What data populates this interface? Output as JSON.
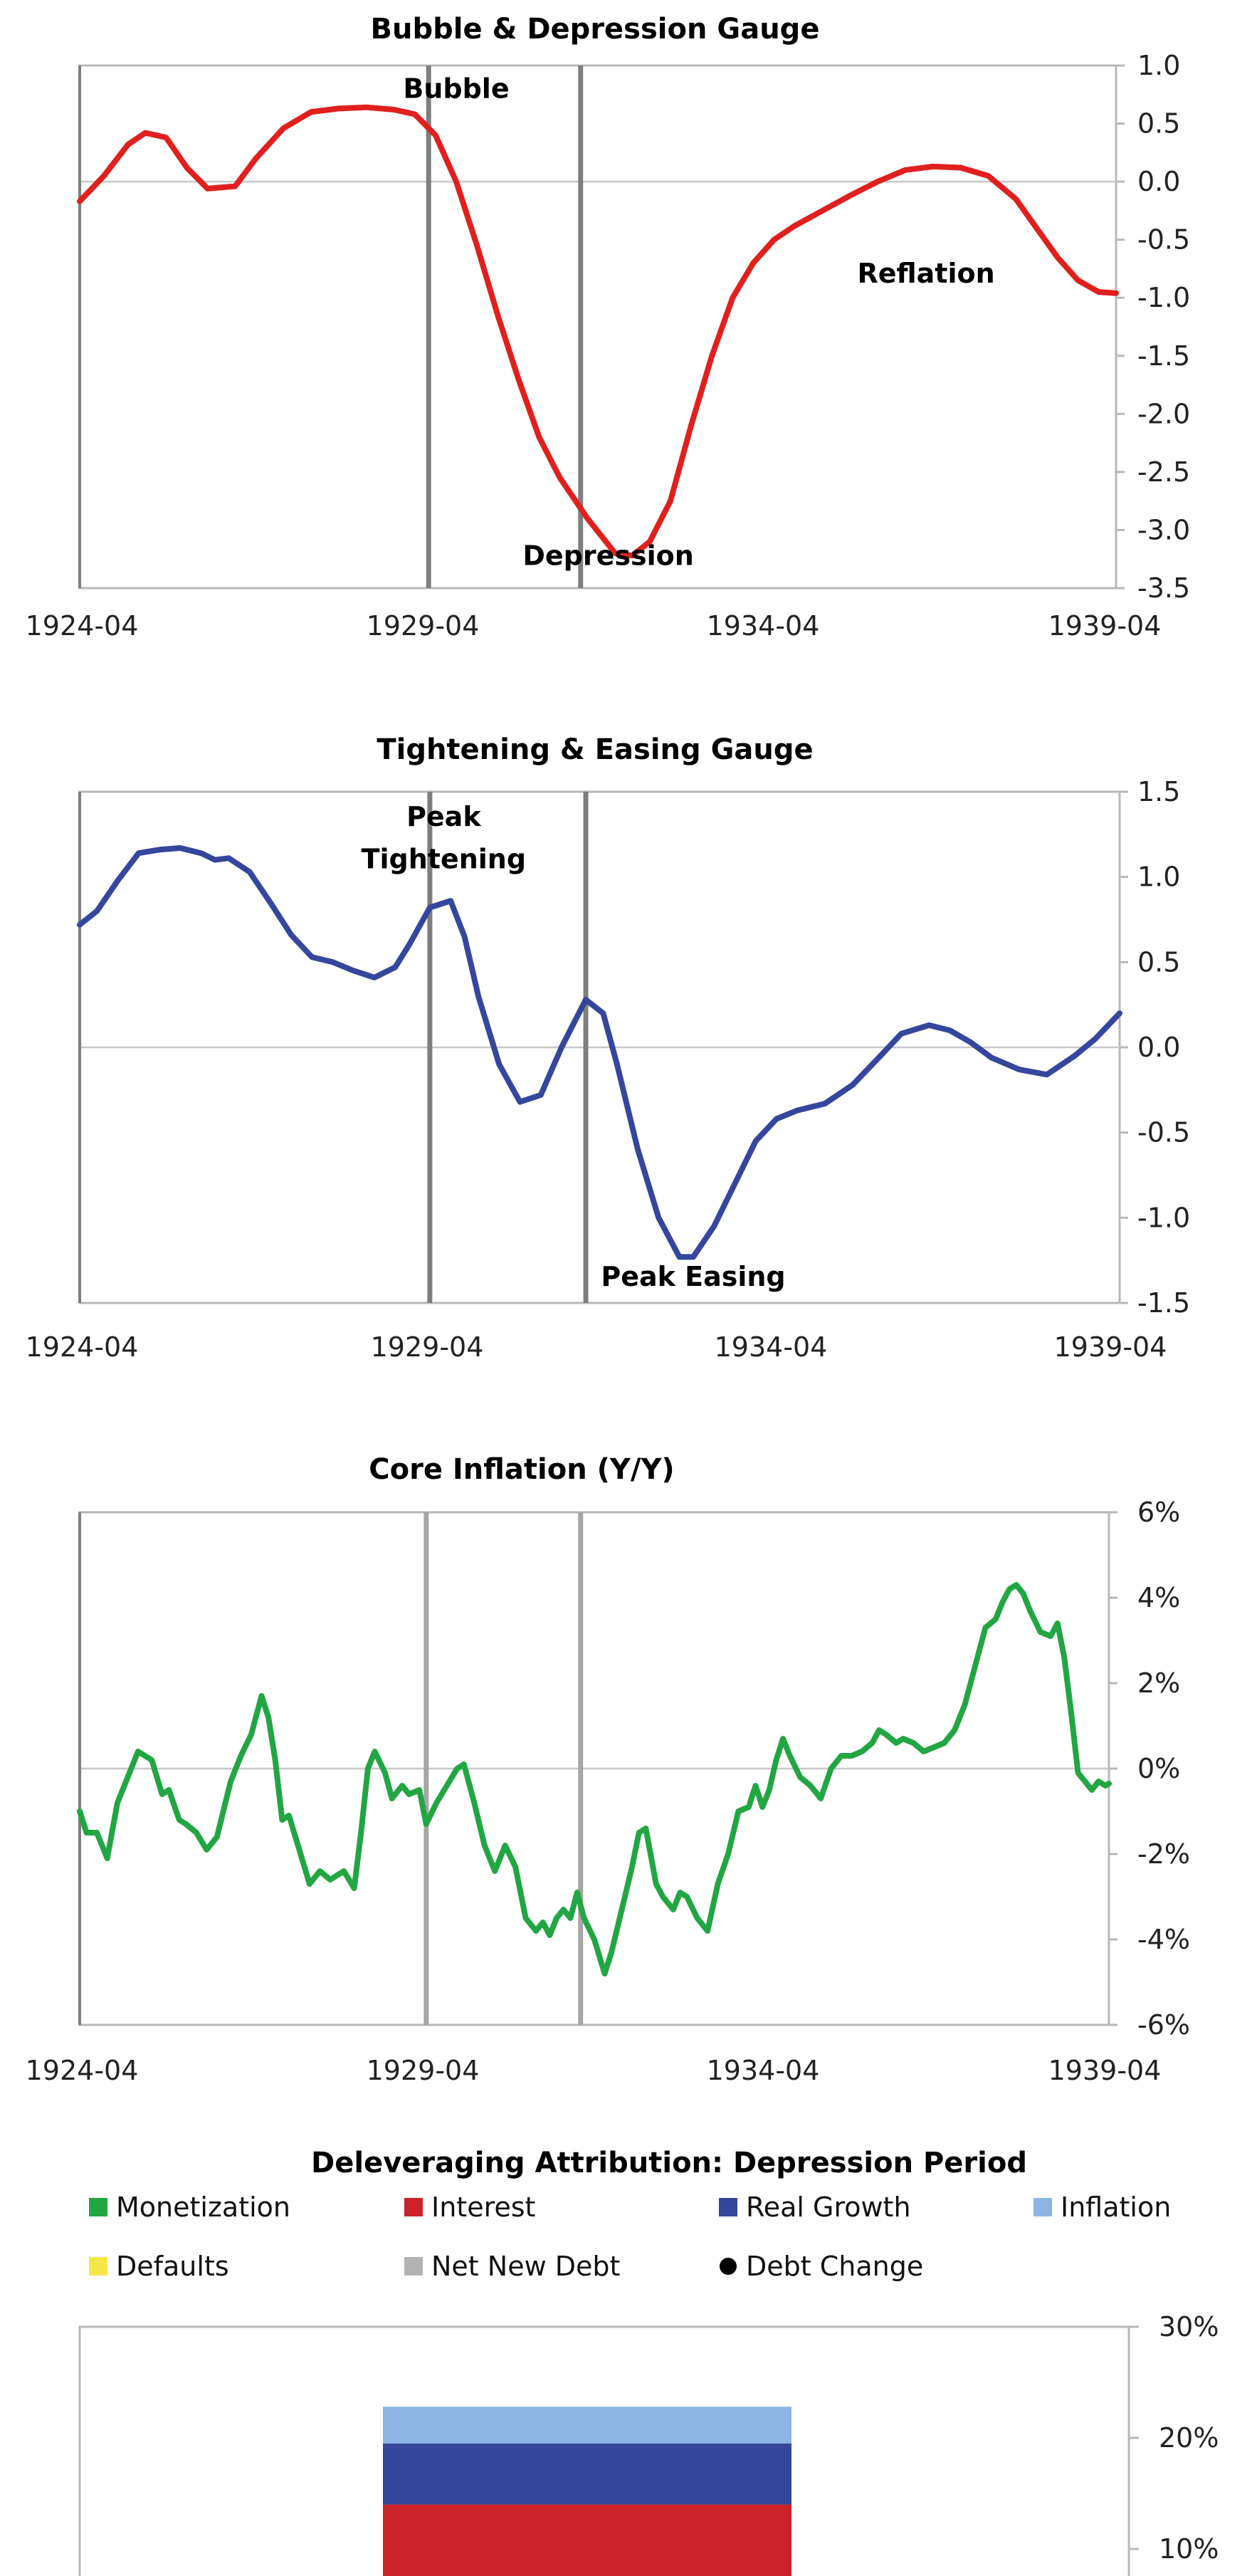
{
  "chart_data": [
    {
      "type": "line",
      "title": "Bubble & Depression Gauge",
      "x_ticks": [
        "1924-04",
        "1929-04",
        "1934-04",
        "1939-04"
      ],
      "x_range": [
        1924.25,
        1939.25
      ],
      "ylim": [
        -3.5,
        1.0
      ],
      "y_ticks": [
        "1.0",
        "0.5",
        "0.0",
        "-0.5",
        "-1.0",
        "-1.5",
        "-2.0",
        "-2.5",
        "-3.0",
        "-3.5"
      ],
      "vlines": [
        1929.3,
        1931.5
      ],
      "line_color": "#e0201e",
      "annotations": [
        {
          "text": "Bubble",
          "x": 1929.7,
          "y": 0.72
        },
        {
          "text": "Depression",
          "x": 1931.9,
          "y": -3.3
        },
        {
          "text": "Reflation",
          "x": 1936.5,
          "y": -0.87
        }
      ],
      "series": [
        {
          "x": [
            1924.25,
            1924.6,
            1924.95,
            1925.2,
            1925.5,
            1925.8,
            1926.1,
            1926.5,
            1926.8,
            1927.2,
            1927.6,
            1928.0,
            1928.4,
            1928.8,
            1929.1,
            1929.4,
            1929.7,
            1930.0,
            1930.3,
            1930.6,
            1930.9,
            1931.2,
            1931.6,
            1932.0,
            1932.25,
            1932.5,
            1932.8,
            1933.1,
            1933.4,
            1933.7,
            1934.0,
            1934.3,
            1934.6,
            1935.0,
            1935.4,
            1935.8,
            1936.2,
            1936.6,
            1937.0,
            1937.4,
            1937.8,
            1938.1,
            1938.4,
            1938.7,
            1939.0,
            1939.25
          ],
          "y": [
            -0.17,
            0.05,
            0.32,
            0.42,
            0.38,
            0.12,
            -0.06,
            -0.04,
            0.2,
            0.46,
            0.6,
            0.63,
            0.64,
            0.62,
            0.58,
            0.4,
            0.0,
            -0.55,
            -1.15,
            -1.7,
            -2.2,
            -2.55,
            -2.9,
            -3.2,
            -3.22,
            -3.1,
            -2.75,
            -2.1,
            -1.5,
            -1.0,
            -0.7,
            -0.5,
            -0.38,
            -0.25,
            -0.12,
            0.0,
            0.1,
            0.13,
            0.12,
            0.05,
            -0.15,
            -0.4,
            -0.65,
            -0.85,
            -0.95,
            -0.96
          ]
        }
      ]
    },
    {
      "type": "line",
      "title": "Tightening & Easing Gauge",
      "x_ticks": [
        "1924-04",
        "1929-04",
        "1934-04",
        "1939-04"
      ],
      "x_range": [
        1924.25,
        1939.25
      ],
      "ylim": [
        -1.5,
        1.5
      ],
      "y_ticks": [
        "1.5",
        "1.0",
        "0.5",
        "0.0",
        "-0.5",
        "-1.0",
        "-1.5"
      ],
      "vlines": [
        1929.3,
        1931.55
      ],
      "line_color": "#35479c",
      "annotations": [
        {
          "text": "Peak",
          "x": 1929.5,
          "y": 1.3
        },
        {
          "text": "Tightening",
          "x": 1929.5,
          "y": 1.05
        },
        {
          "text": "Peak Easing",
          "x": 1933.1,
          "y": -1.4
        }
      ],
      "series": [
        {
          "x": [
            1924.25,
            1924.5,
            1924.8,
            1925.1,
            1925.4,
            1925.7,
            1926.0,
            1926.2,
            1926.4,
            1926.7,
            1927.0,
            1927.3,
            1927.6,
            1927.9,
            1928.2,
            1928.5,
            1928.8,
            1929.0,
            1929.3,
            1929.6,
            1929.8,
            1930.0,
            1930.3,
            1930.6,
            1930.9,
            1931.2,
            1931.55,
            1931.8,
            1932.0,
            1932.3,
            1932.6,
            1932.9,
            1933.1,
            1933.4,
            1933.7,
            1934.0,
            1934.3,
            1934.6,
            1935.0,
            1935.4,
            1935.8,
            1936.1,
            1936.5,
            1936.8,
            1937.1,
            1937.4,
            1937.8,
            1938.2,
            1938.6,
            1938.9,
            1939.25
          ],
          "y": [
            0.72,
            0.8,
            0.98,
            1.14,
            1.16,
            1.17,
            1.14,
            1.1,
            1.11,
            1.03,
            0.85,
            0.66,
            0.53,
            0.5,
            0.45,
            0.41,
            0.47,
            0.6,
            0.82,
            0.86,
            0.65,
            0.3,
            -0.1,
            -0.32,
            -0.28,
            0.0,
            0.28,
            0.2,
            -0.1,
            -0.6,
            -1.0,
            -1.23,
            -1.23,
            -1.05,
            -0.8,
            -0.55,
            -0.42,
            -0.37,
            -0.33,
            -0.22,
            -0.05,
            0.08,
            0.13,
            0.1,
            0.03,
            -0.06,
            -0.13,
            -0.16,
            -0.05,
            0.05,
            0.2
          ]
        }
      ]
    },
    {
      "type": "line",
      "title": "Core Inflation (Y/Y)",
      "x_ticks": [
        "1924-04",
        "1929-04",
        "1934-04",
        "1939-04"
      ],
      "x_range": [
        1924.25,
        1939.25
      ],
      "ylim": [
        -6,
        6
      ],
      "y_ticks": [
        "6%",
        "4%",
        "2%",
        "0%",
        "-2%",
        "-4%",
        "-6%"
      ],
      "vlines": [
        1929.3,
        1931.55
      ],
      "line_color": "#22a643",
      "series": [
        {
          "x": [
            1924.25,
            1924.35,
            1924.5,
            1924.65,
            1924.8,
            1924.95,
            1925.1,
            1925.3,
            1925.45,
            1925.55,
            1925.7,
            1925.8,
            1925.95,
            1926.1,
            1926.25,
            1926.45,
            1926.6,
            1926.75,
            1926.9,
            1927.0,
            1927.1,
            1927.2,
            1927.3,
            1927.45,
            1927.6,
            1927.75,
            1927.9,
            1928.1,
            1928.25,
            1928.35,
            1928.45,
            1928.55,
            1928.7,
            1928.8,
            1928.95,
            1929.05,
            1929.2,
            1929.3,
            1929.45,
            1929.6,
            1929.75,
            1929.85,
            1930.0,
            1930.15,
            1930.3,
            1930.45,
            1930.6,
            1930.75,
            1930.9,
            1931.0,
            1931.1,
            1931.2,
            1931.3,
            1931.4,
            1931.5,
            1931.6,
            1931.75,
            1931.9,
            1932.0,
            1932.15,
            1932.3,
            1932.4,
            1932.5,
            1932.65,
            1932.75,
            1932.9,
            1933.0,
            1933.1,
            1933.25,
            1933.4,
            1933.55,
            1933.7,
            1933.85,
            1934.0,
            1934.1,
            1934.2,
            1934.3,
            1934.4,
            1934.5,
            1934.6,
            1934.75,
            1934.9,
            1935.05,
            1935.2,
            1935.35,
            1935.5,
            1935.65,
            1935.8,
            1935.9,
            1936.0,
            1936.15,
            1936.25,
            1936.4,
            1936.55,
            1936.7,
            1936.85,
            1937.0,
            1937.15,
            1937.3,
            1937.45,
            1937.6,
            1937.7,
            1937.8,
            1937.9,
            1938.0,
            1938.1,
            1938.25,
            1938.4,
            1938.5,
            1938.6,
            1938.7,
            1938.8,
            1938.9,
            1939.0,
            1939.1,
            1939.2,
            1939.25
          ],
          "y": [
            -1.0,
            -1.5,
            -1.5,
            -2.1,
            -0.8,
            -0.2,
            0.4,
            0.2,
            -0.6,
            -0.5,
            -1.2,
            -1.3,
            -1.5,
            -1.9,
            -1.6,
            -0.3,
            0.3,
            0.8,
            1.7,
            1.2,
            0.2,
            -1.2,
            -1.1,
            -1.9,
            -2.7,
            -2.4,
            -2.6,
            -2.4,
            -2.8,
            -1.5,
            0.0,
            0.4,
            -0.1,
            -0.7,
            -0.4,
            -0.6,
            -0.5,
            -1.3,
            -0.8,
            -0.4,
            0.0,
            0.1,
            -0.8,
            -1.8,
            -2.4,
            -1.8,
            -2.3,
            -3.5,
            -3.8,
            -3.6,
            -3.9,
            -3.5,
            -3.3,
            -3.5,
            -2.9,
            -3.5,
            -4.0,
            -4.8,
            -4.3,
            -3.3,
            -2.3,
            -1.5,
            -1.4,
            -2.7,
            -3.0,
            -3.3,
            -2.9,
            -3.0,
            -3.5,
            -3.8,
            -2.7,
            -2.0,
            -1.0,
            -0.9,
            -0.4,
            -0.9,
            -0.5,
            0.2,
            0.7,
            0.3,
            -0.2,
            -0.4,
            -0.7,
            0.0,
            0.3,
            0.3,
            0.4,
            0.6,
            0.9,
            0.8,
            0.6,
            0.7,
            0.6,
            0.4,
            0.5,
            0.6,
            0.9,
            1.5,
            2.4,
            3.3,
            3.5,
            3.9,
            4.2,
            4.3,
            4.1,
            3.7,
            3.2,
            3.1,
            3.4,
            2.6,
            1.3,
            -0.1,
            -0.3,
            -0.5,
            -0.3,
            -0.4,
            -0.35
          ]
        }
      ]
    },
    {
      "type": "bar",
      "title": "Deleveraging Attribution: Depression Period",
      "legend": [
        {
          "name": "Monetization",
          "color": "#22a643",
          "marker": "square"
        },
        {
          "name": "Interest",
          "color": "#cc2229",
          "marker": "square"
        },
        {
          "name": "Real Growth",
          "color": "#35479c",
          "marker": "square"
        },
        {
          "name": "Inflation",
          "color": "#8eb4e3",
          "marker": "square"
        },
        {
          "name": "Defaults",
          "color": "#f5e64a",
          "marker": "square"
        },
        {
          "name": "Net New Debt",
          "color": "#b3b3b3",
          "marker": "square"
        },
        {
          "name": "Debt Change",
          "color": "#000000",
          "marker": "circle"
        }
      ],
      "y_ticks": [
        "30%",
        "20%",
        "10%"
      ],
      "ylim": [
        0,
        30
      ],
      "stacked_bar": [
        {
          "name": "Interest",
          "from": 0,
          "to": 14,
          "color": "#cc2229"
        },
        {
          "name": "Real Growth",
          "from": 14,
          "to": 19.5,
          "color": "#35479c"
        },
        {
          "name": "Inflation",
          "from": 19.5,
          "to": 22.8,
          "color": "#8eb4e3"
        }
      ]
    }
  ]
}
